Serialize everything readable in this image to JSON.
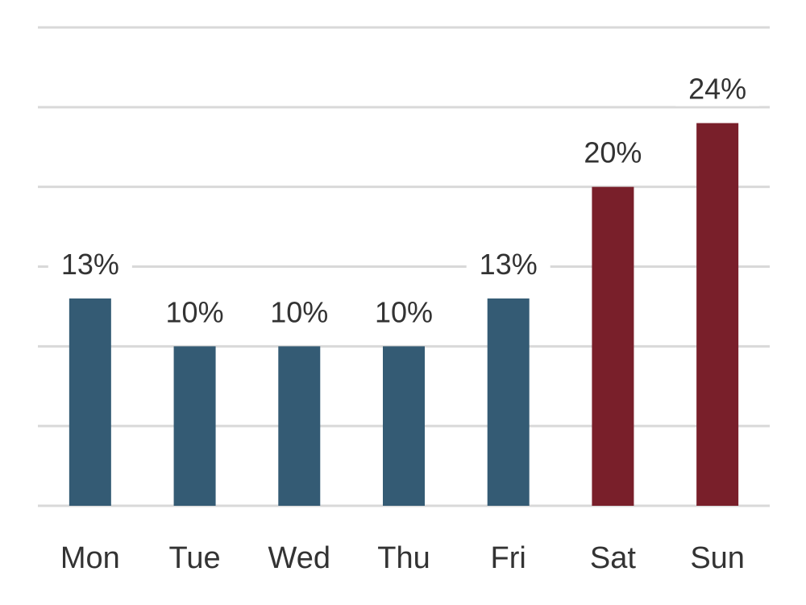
{
  "chart_data": {
    "type": "bar",
    "categories": [
      "Mon",
      "Tue",
      "Wed",
      "Thu",
      "Fri",
      "Sat",
      "Sun"
    ],
    "values": [
      13,
      10,
      10,
      10,
      13,
      20,
      24
    ],
    "labels": [
      "13%",
      "10%",
      "10%",
      "10%",
      "13%",
      "20%",
      "24%"
    ],
    "unit": "%",
    "title": "",
    "xlabel": "",
    "ylabel": "",
    "ylim": [
      0,
      30
    ],
    "grid_step": 5,
    "grid": true,
    "legend": "none",
    "colors": {
      "weekday": "#345b74",
      "weekend": "#791f2a",
      "grid": "#d9d9d9",
      "text": "#333333"
    },
    "bar_colors": [
      "weekday",
      "weekday",
      "weekday",
      "weekday",
      "weekday",
      "weekend",
      "weekend"
    ]
  }
}
